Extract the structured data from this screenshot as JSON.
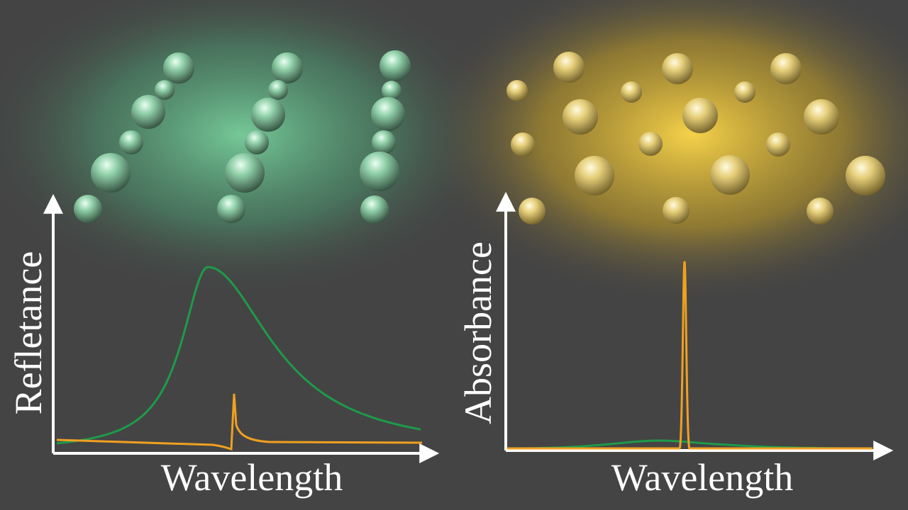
{
  "left_panel": {
    "y_label": "Refletance",
    "x_label": "Wavelength"
  },
  "right_panel": {
    "y_label": "Absorbance",
    "x_label": "Wavelength"
  }
}
